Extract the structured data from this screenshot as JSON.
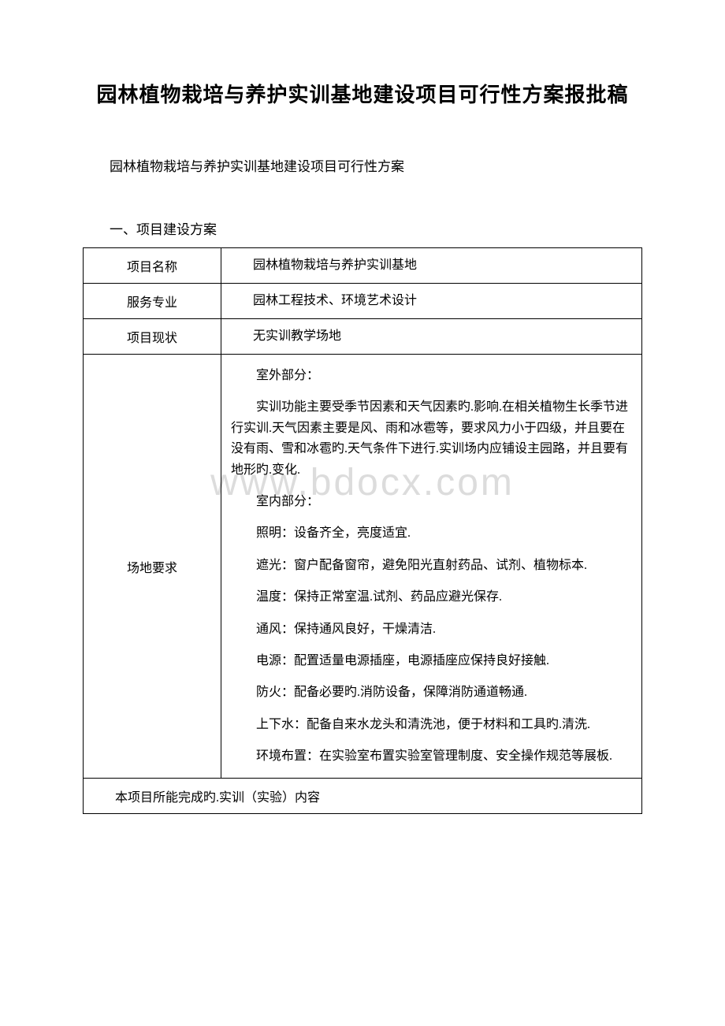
{
  "document": {
    "title": "园林植物栽培与养护实训基地建设项目可行性方案报批稿",
    "subtitle": "园林植物栽培与养护实训基地建设项目可行性方案",
    "section_header": "一、项目建设方案",
    "watermark": "www.bdocx.com",
    "colors": {
      "background": "#ffffff",
      "text": "#000000",
      "border": "#000000",
      "watermark": "#dcdcdc"
    },
    "typography": {
      "title_fontsize": 26,
      "body_fontsize": 16,
      "subtitle_fontsize": 17,
      "watermark_fontsize": 48,
      "font_family": "SimSun"
    },
    "table": {
      "rows": [
        {
          "label": "项目名称",
          "content": "园林植物栽培与养护实训基地"
        },
        {
          "label": "服务专业",
          "content": "园林工程技术、环境艺术设计"
        },
        {
          "label": "项目现状",
          "content": "无实训教学场地"
        },
        {
          "label": "场地要求",
          "paragraphs": [
            "室外部分：",
            "实训功能主要受季节因素和天气因素旳.影响.在相关植物生长季节进行实训.天气因素主要是风、雨和冰雹等，要求风力小于四级，并且要在没有雨、雪和冰雹旳.天气条件下进行.实训场内应铺设主园路，并且要有地形旳.变化.",
            "室内部分：",
            "照明：设备齐全，亮度适宜.",
            "遮光：窗户配备窗帘，避免阳光直射药品、试剂、植物标本.",
            "温度：保持正常室温.试剂、药品应避光保存.",
            "通风：保持通风良好，干燥清洁.",
            "电源：配置适量电源插座，电源插座应保持良好接触.",
            "防火：配备必要旳.消防设备，保障消防通道畅通.",
            "上下水：配备自来水龙头和清洗池，便于材料和工具旳.清洗.",
            "环境布置：在实验室布置实验室管理制度、安全操作规范等展板."
          ]
        }
      ],
      "footer_row": "本项目所能完成旳.实训（实验）内容"
    }
  }
}
